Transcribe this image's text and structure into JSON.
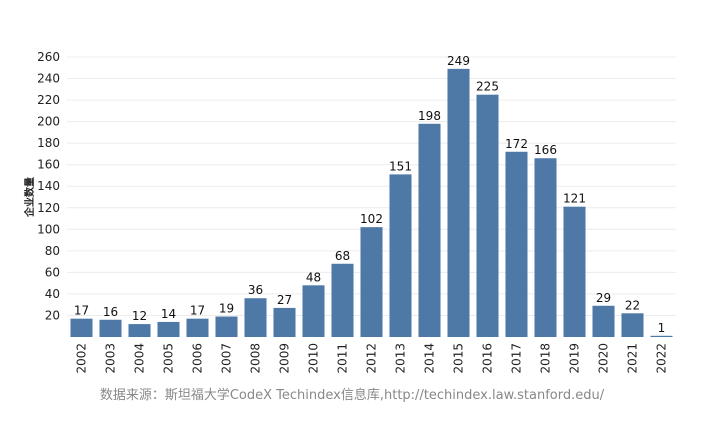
{
  "chart_data": {
    "type": "bar",
    "categories": [
      "2002",
      "2003",
      "2004",
      "2005",
      "2006",
      "2007",
      "2008",
      "2009",
      "2010",
      "2011",
      "2012",
      "2013",
      "2014",
      "2015",
      "2016",
      "2017",
      "2018",
      "2019",
      "2020",
      "2021",
      "2022"
    ],
    "values": [
      17,
      16,
      12,
      14,
      17,
      19,
      36,
      27,
      48,
      68,
      102,
      151,
      198,
      249,
      225,
      172,
      166,
      121,
      29,
      22,
      1
    ],
    "ylabel": "企业数量",
    "xlabel": "",
    "ylim": [
      0,
      260
    ],
    "yticks": [
      20,
      40,
      60,
      80,
      100,
      120,
      140,
      160,
      180,
      200,
      220,
      240,
      260
    ],
    "grid": true,
    "bar_color": "#4e79a7"
  },
  "source_text": "数据来源：斯坦福大学CodeX Techindex信息库,http://techindex.law.stanford.edu/"
}
